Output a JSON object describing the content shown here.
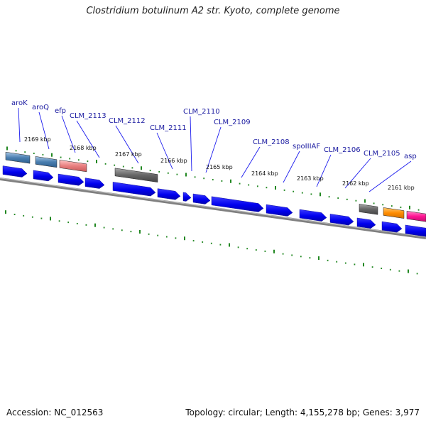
{
  "title": "Clostridium botulinum A2 str. Kyoto, complete genome",
  "footer": {
    "accession": "Accession: NC_012563",
    "summary": "Topology: circular; Length: 4,155,278 bp; Genes: 3,977"
  },
  "kbp_labels": [
    "2169 kbp",
    "2168 kbp",
    "2167 kbp",
    "2166 kbp",
    "2165 kbp",
    "2164 kbp",
    "2163 kbp",
    "2162 kbp",
    "2161 kbp"
  ],
  "gene_labels": [
    "aroK",
    "aroQ",
    "efp",
    "CLM_2113",
    "CLM_2112",
    "CLM_2111",
    "CLM_2110",
    "CLM_2109",
    "CLM_2108",
    "spoIIIAF",
    "CLM_2106",
    "CLM_2105",
    "asp"
  ],
  "colors": {
    "cds": "#0000ee",
    "backbone": "#808080",
    "ticks": "#228822",
    "label_lines": "#1a1aee",
    "track_steelblue": "#4a7fb0",
    "track_salmon": "#e88080",
    "track_gray": "#666666",
    "track_orange": "#ff8c00",
    "track_pink": "#ff1493"
  }
}
